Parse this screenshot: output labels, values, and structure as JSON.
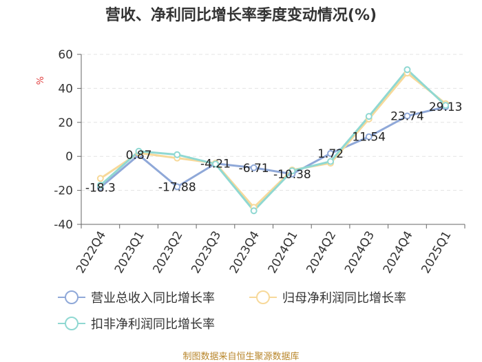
{
  "chart_data": {
    "type": "line",
    "title": "营收、净利同比增长率季度变动情况(%)",
    "ylabel": "%",
    "ylim": [
      -40,
      60
    ],
    "yticks": [
      -40,
      -20,
      0,
      20,
      40,
      60
    ],
    "grid": true,
    "legend_position": "bottom",
    "categories": [
      "2022Q4",
      "2023Q1",
      "2023Q2",
      "2023Q3",
      "2023Q4",
      "2024Q1",
      "2024Q2",
      "2024Q3",
      "2024Q4",
      "2025Q1"
    ],
    "series": [
      {
        "name": "营业总收入同比增长率",
        "color": "#8fa8d8",
        "values": [
          -18.3,
          0.87,
          -17.88,
          -4.21,
          -6.71,
          -10.38,
          1.72,
          11.54,
          23.74,
          29.13
        ],
        "labels": [
          "-18.3",
          "0.87",
          "-17.88",
          "-4.21",
          "-6.71",
          "-10.38",
          "1.72",
          "11.54",
          "23.74",
          "29.13"
        ]
      },
      {
        "name": "归母净利润同比增长率",
        "color": "#f7d99a",
        "values": [
          -13.0,
          2.0,
          -1.0,
          -4.0,
          -30.0,
          -8.0,
          -4.0,
          22.0,
          49.0,
          31.0
        ]
      },
      {
        "name": "扣非净利润同比增长率",
        "color": "#8fd8d2",
        "values": [
          -17.0,
          3.0,
          1.0,
          -4.5,
          -32.0,
          -8.5,
          -3.0,
          23.5,
          51.0,
          30.0
        ]
      }
    ]
  },
  "source": "制图数据来自恒生聚源数据库"
}
